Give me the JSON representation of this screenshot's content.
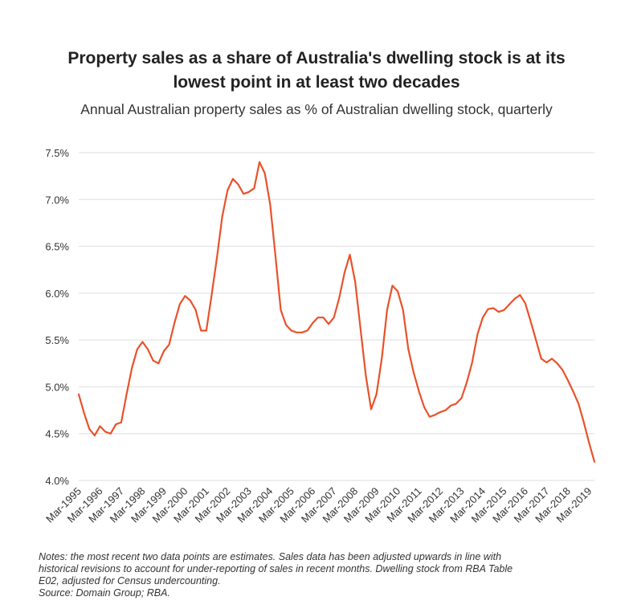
{
  "title_line1": "Property sales as a share of Australia's dwelling stock is at its",
  "title_line2": "lowest point in at least two decades",
  "subtitle": "Annual Australian property sales as % of Australian dwelling stock, quarterly",
  "notes_line1": "Notes: the most recent two data points are estimates. Sales data has been adjusted upwards in line with",
  "notes_line2": "historical revisions to account for under-reporting of sales in recent months. Dwelling stock from RBA Table",
  "notes_line3": "E02, adjusted for Census undercounting.",
  "source": "Source: Domain Group; RBA.",
  "colors": {
    "line": "#e8522a",
    "grid": "#dddddd",
    "text": "#333333"
  },
  "chart_data": {
    "type": "line",
    "title": "Property sales as a share of Australia's dwelling stock is at its lowest point in at least two decades",
    "xlabel": "",
    "ylabel": "",
    "ylim": [
      4.0,
      7.5
    ],
    "y_ticks": [
      4.0,
      4.5,
      5.0,
      5.5,
      6.0,
      6.5,
      7.0,
      7.5
    ],
    "y_tick_labels": [
      "4.0%",
      "4.5%",
      "5.0%",
      "5.5%",
      "6.0%",
      "6.5%",
      "7.0%",
      "7.5%"
    ],
    "x_tick_labels": [
      "Mar-1995",
      "Mar-1996",
      "Mar-1997",
      "Mar-1998",
      "Mar-1999",
      "Mar-2000",
      "Mar-2001",
      "Mar-2002",
      "Mar-2003",
      "Mar-2004",
      "Mar-2005",
      "Mar-2006",
      "Mar-2007",
      "Mar-2008",
      "Mar-2009",
      "Mar-2010",
      "Mar-2011",
      "Mar-2012",
      "Mar-2013",
      "Mar-2014",
      "Mar-2015",
      "Mar-2016",
      "Mar-2017",
      "Mar-2018",
      "Mar-2019"
    ],
    "grid": true,
    "series": [
      {
        "name": "Annual property sales as % of dwelling stock",
        "values": [
          4.92,
          4.72,
          4.55,
          4.48,
          4.58,
          4.52,
          4.5,
          4.6,
          4.62,
          4.92,
          5.2,
          5.4,
          5.48,
          5.4,
          5.28,
          5.25,
          5.38,
          5.45,
          5.68,
          5.88,
          5.97,
          5.92,
          5.82,
          5.6,
          5.6,
          5.98,
          6.38,
          6.82,
          7.1,
          7.22,
          7.16,
          7.06,
          7.08,
          7.12,
          7.4,
          7.28,
          6.95,
          6.4,
          5.82,
          5.66,
          5.6,
          5.58,
          5.58,
          5.6,
          5.68,
          5.74,
          5.74,
          5.67,
          5.74,
          5.95,
          6.22,
          6.41,
          6.12,
          5.62,
          5.12,
          4.76,
          4.92,
          5.3,
          5.82,
          6.08,
          6.02,
          5.82,
          5.4,
          5.15,
          4.95,
          4.78,
          4.68,
          4.7,
          4.73,
          4.75,
          4.8,
          4.82,
          4.88,
          5.05,
          5.26,
          5.56,
          5.74,
          5.83,
          5.84,
          5.8,
          5.82,
          5.88,
          5.94,
          5.98,
          5.89,
          5.7,
          5.5,
          5.3,
          5.26,
          5.3,
          5.25,
          5.18,
          5.07,
          4.95,
          4.82,
          4.62,
          4.4,
          4.2
        ]
      }
    ]
  }
}
